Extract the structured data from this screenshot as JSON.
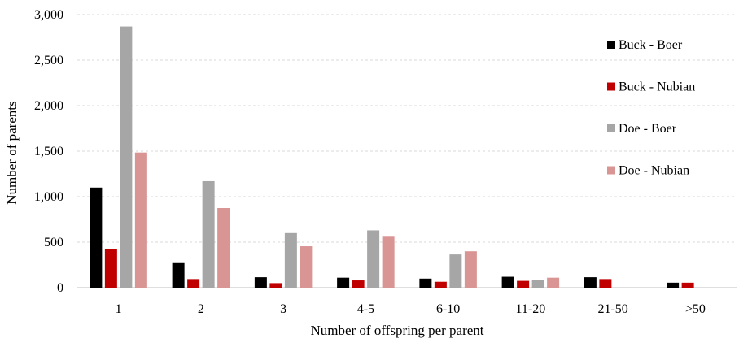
{
  "chart_data": {
    "type": "bar",
    "title": "",
    "xlabel": "Number of offspring per parent",
    "ylabel": "Number of parents",
    "ylim": [
      0,
      3000
    ],
    "yticks": [
      "0",
      "500",
      "1,000",
      "1,500",
      "2,000",
      "2,500",
      "3,000"
    ],
    "ytick_values": [
      0,
      500,
      1000,
      1500,
      2000,
      2500,
      3000
    ],
    "grid": "horizontal dashed",
    "legend_position": "right",
    "categories": [
      "1",
      "2",
      "3",
      "4-5",
      "6-10",
      "11-20",
      "21-50",
      ">50"
    ],
    "series": [
      {
        "name": "Buck - Boer",
        "color": "#000000",
        "values": [
          1100,
          270,
          115,
          110,
          100,
          120,
          115,
          55
        ]
      },
      {
        "name": "Buck - Nubian",
        "color": "#c00000",
        "values": [
          420,
          95,
          50,
          80,
          65,
          75,
          95,
          55
        ]
      },
      {
        "name": "Doe - Boer",
        "color": "#a6a6a6",
        "values": [
          2870,
          1170,
          600,
          630,
          365,
          85,
          0,
          0
        ]
      },
      {
        "name": "Doe - Nubian",
        "color": "#d99594",
        "values": [
          1485,
          875,
          455,
          560,
          400,
          110,
          0,
          0
        ]
      }
    ]
  }
}
